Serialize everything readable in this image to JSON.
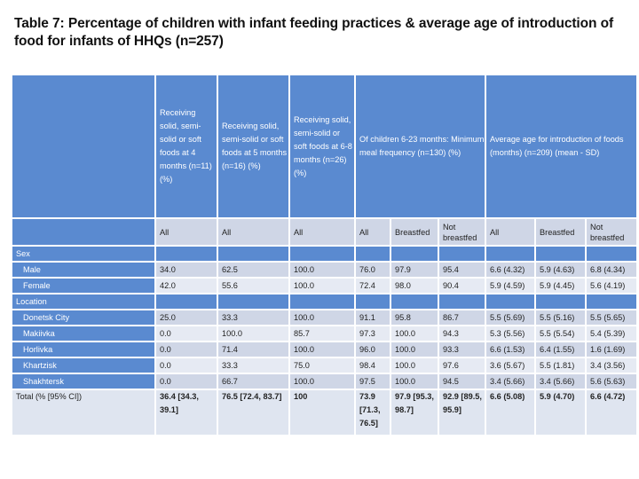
{
  "title": "Table 7: Percentage of children with infant feeding practices & average age of introduction of food for infants of HHQs (n=257)",
  "colors": {
    "header": "#5a8ad0",
    "row_dark": "#cfd6e6",
    "row_light": "#e6eaf3"
  },
  "headers": [
    "",
    "Receiving solid, semi-solid or soft foods at 4 months (n=11) (%)",
    "Receiving solid, semi-solid or soft foods at 5 months (n=16) (%)",
    "Receiving solid, semi-solid or soft foods at 6-8 months (n=26) (%)",
    "Of children 6-23 months: Minimum meal frequency (n=130) (%)",
    "Average age for introduction of foods (months) (n=209) (mean - SD)"
  ],
  "subheaders": [
    "",
    "All",
    "All",
    "All",
    "All",
    "Breastfed",
    "Not breastfed",
    "All",
    "Breastfed",
    "Not breastfed"
  ],
  "rows": [
    {
      "label": "Sex",
      "group": true,
      "values": [
        "",
        "",
        "",
        "",
        "",
        "",
        "",
        "",
        ""
      ]
    },
    {
      "label": "Male",
      "values": [
        "34.0",
        "62.5",
        "100.0",
        "76.0",
        "97.9",
        "95.4",
        "6.6 (4.32)",
        "5.9 (4.63)",
        "6.8 (4.34)"
      ]
    },
    {
      "label": "Female",
      "values": [
        "42.0",
        "55.6",
        "100.0",
        "72.4",
        "98.0",
        "90.4",
        "5.9 (4.59)",
        "5.9 (4.45)",
        "5.6 (4.19)"
      ]
    },
    {
      "label": "Location",
      "group": true,
      "values": [
        "",
        "",
        "",
        "",
        "",
        "",
        "",
        "",
        ""
      ]
    },
    {
      "label": "Donetsk City",
      "values": [
        "25.0",
        "33.3",
        "100.0",
        "91.1",
        "95.8",
        "86.7",
        "5.5 (5.69)",
        "5.5 (5.16)",
        "5.5 (5.65)"
      ]
    },
    {
      "label": "Makiivka",
      "values": [
        "0.0",
        "100.0",
        "85.7",
        "97.3",
        "100.0",
        "94.3",
        "5.3 (5.56)",
        "5.5 (5.54)",
        "5.4 (5.39)"
      ]
    },
    {
      "label": "Horlivka",
      "values": [
        "0.0",
        "71.4",
        "100.0",
        "96.0",
        "100.0",
        "93.3",
        "6.6 (1.53)",
        "6.4 (1.55)",
        "1.6 (1.69)"
      ]
    },
    {
      "label": "Khartzisk",
      "values": [
        "0.0",
        "33.3",
        "75.0",
        "98.4",
        "100.0",
        "97.6",
        "3.6 (5.67)",
        "5.5 (1.81)",
        "3.4 (3.56)"
      ]
    },
    {
      "label": "Shakhtersk",
      "values": [
        "0.0",
        "66.7",
        "100.0",
        "97.5",
        "100.0",
        "94.5",
        "3.4 (5.66)",
        "3.4 (5.66)",
        "5.6 (5.63)"
      ]
    }
  ],
  "total": {
    "label": "Total (% [95% CI])",
    "values": [
      "36.4 [34.3, 39.1]",
      "76.5 [72.4, 83.7]",
      "100",
      "73.9 [71.3, 76.5]",
      "97.9 [95.3, 98.7]",
      "92.9 [89.5, 95.9]",
      "6.6 (5.08)",
      "5.9 (4.70)",
      "6.6 (4.72)"
    ]
  }
}
